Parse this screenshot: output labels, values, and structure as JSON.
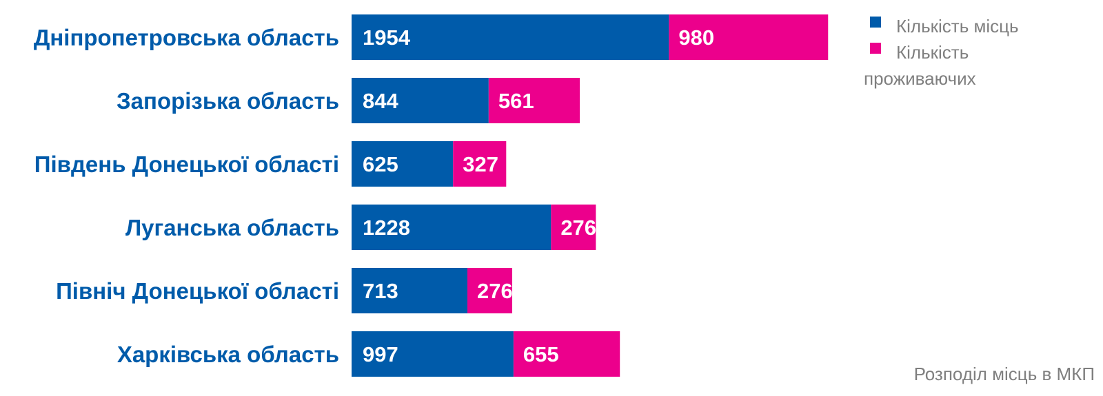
{
  "chart_data": {
    "type": "bar",
    "orientation": "horizontal",
    "stacked": true,
    "categories": [
      "Дніпропетровська область",
      "Запорізька область",
      "Південь Донецької області",
      "Луганська область",
      "Північ Донецької області",
      "Харківська область"
    ],
    "series": [
      {
        "name": "Кількість місць",
        "color": "#005BAA",
        "values": [
          1954,
          844,
          625,
          1228,
          713,
          997
        ]
      },
      {
        "name": "Кількість проживаючих",
        "color": "#EC008C",
        "values": [
          980,
          561,
          327,
          276,
          276,
          655
        ]
      }
    ],
    "legend": {
      "position": "top-right",
      "lines": [
        {
          "text": "Кількість місць",
          "series": 0
        },
        {
          "text": "Кількість",
          "series": 1
        },
        {
          "text": "проживаючих",
          "series": -1
        }
      ]
    },
    "caption": "Розподіл місць в МКП",
    "category_label_color": "#005BAA",
    "axis_visible": false,
    "grid": false
  }
}
